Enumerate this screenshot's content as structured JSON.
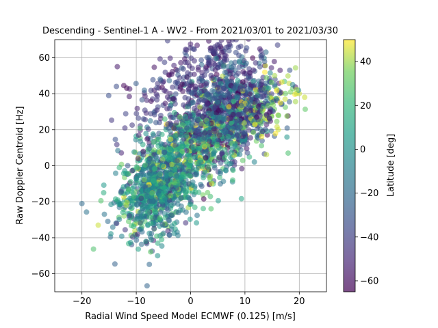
{
  "chart_data": {
    "type": "scatter",
    "title": "Descending - Sentinel-1 A - WV2 - From 2021/03/01 to 2021/03/30",
    "xlabel": "Radial Wind Speed Model ECMWF (0.125) [m/s]",
    "ylabel": "Raw Doppler Centroid [Hz]",
    "xlim": [
      -25,
      25
    ],
    "ylim": [
      -70,
      70
    ],
    "xticks": [
      -20,
      -10,
      0,
      10,
      20
    ],
    "yticks": [
      -60,
      -40,
      -20,
      0,
      20,
      40,
      60
    ],
    "grid": true,
    "colormap": "viridis",
    "point_alpha": 0.55,
    "colorbar": {
      "label": "Latitude [deg]",
      "range": [
        -65,
        50
      ],
      "ticks": [
        -60,
        -40,
        -20,
        0,
        20,
        40
      ]
    },
    "clusters": [
      {
        "center_x": -6,
        "center_y": -12,
        "spread_x": 3.5,
        "spread_y": 13,
        "lat_mean": -5,
        "lat_std": 22,
        "count": 900
      },
      {
        "center_x": 7,
        "center_y": 30,
        "spread_x": 4.5,
        "spread_y": 13,
        "lat_mean": -35,
        "lat_std": 18,
        "count": 900
      },
      {
        "center_x": 2,
        "center_y": 12,
        "spread_x": 5,
        "spread_y": 14,
        "lat_mean": 15,
        "lat_std": 25,
        "count": 500
      },
      {
        "center_x": -3,
        "center_y": 40,
        "spread_x": 5,
        "spread_y": 12,
        "lat_mean": -45,
        "lat_std": 10,
        "count": 180
      },
      {
        "center_x": 14,
        "center_y": 35,
        "spread_x": 3,
        "spread_y": 7,
        "lat_mean": 40,
        "lat_std": 8,
        "count": 90
      },
      {
        "center_x": 5,
        "center_y": 62,
        "spread_x": 4,
        "spread_y": 5,
        "lat_mean": -45,
        "lat_std": 8,
        "count": 70
      }
    ],
    "outliers": [
      {
        "x": -20,
        "y": -21,
        "lat": -20
      },
      {
        "x": -17,
        "y": -33,
        "lat": 45
      },
      {
        "x": -16,
        "y": -15,
        "lat": 15
      },
      {
        "x": 21,
        "y": 38,
        "lat": 45
      },
      {
        "x": 20,
        "y": 40,
        "lat": 45
      }
    ]
  }
}
